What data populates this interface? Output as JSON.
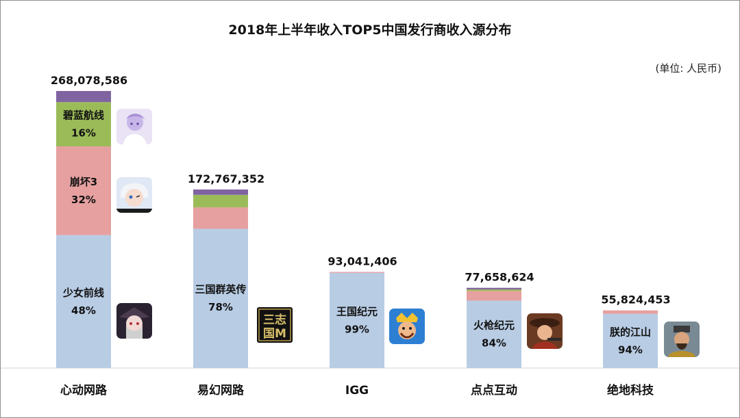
{
  "chart_data": {
    "type": "bar",
    "stacked": true,
    "title": "2018年上半年收入TOP5中国发行商收入源分布",
    "unit_note": "(单位: 人民币)",
    "categories": [
      "心动网路",
      "易幻网路",
      "IGG",
      "点点互动",
      "绝地科技"
    ],
    "totals": [
      268078586,
      172767352,
      93041406,
      77658624,
      55824453
    ],
    "total_labels": [
      "268,078,586",
      "172,767,352",
      "93,041,406",
      "77,658,624",
      "55,824,453"
    ],
    "ylim": [
      0,
      280000000
    ],
    "series_colors": [
      "#b8cce4",
      "#e6a0a0",
      "#9bbb59",
      "#8064a2"
    ],
    "stacks": [
      {
        "segments": [
          {
            "share": 0.48,
            "game": "少女前线",
            "pct": "48%"
          },
          {
            "share": 0.32,
            "game": "崩坏3",
            "pct": "32%"
          },
          {
            "share": 0.16,
            "game": "碧蓝航线",
            "pct": "16%"
          },
          {
            "share": 0.04
          }
        ]
      },
      {
        "segments": [
          {
            "share": 0.78,
            "game": "三国群英传",
            "pct": "78%"
          },
          {
            "share": 0.12
          },
          {
            "share": 0.07
          },
          {
            "share": 0.03
          }
        ]
      },
      {
        "segments": [
          {
            "share": 0.99,
            "game": "王国纪元",
            "pct": "99%"
          },
          {
            "share": 0.01
          }
        ]
      },
      {
        "segments": [
          {
            "share": 0.84,
            "game": "火枪纪元",
            "pct": "84%"
          },
          {
            "share": 0.12
          },
          {
            "share": 0.02
          },
          {
            "share": 0.02
          }
        ]
      },
      {
        "segments": [
          {
            "share": 0.94,
            "game": "朕的江山",
            "pct": "94%"
          },
          {
            "share": 0.06
          }
        ]
      }
    ],
    "game_icons": [
      {
        "name": "azur-lane-icon",
        "for": "碧蓝航线"
      },
      {
        "name": "honkai-impact-icon",
        "for": "崩坏3"
      },
      {
        "name": "girls-frontline-icon",
        "for": "少女前线"
      },
      {
        "name": "three-kingdoms-icon",
        "for": "三国群英传",
        "logo_text": "三志\n国M"
      },
      {
        "name": "lords-mobile-icon",
        "for": "王国纪元"
      },
      {
        "name": "guns-of-glory-icon",
        "for": "火枪纪元"
      },
      {
        "name": "zhen-jiangshan-icon",
        "for": "朕的江山"
      }
    ]
  }
}
